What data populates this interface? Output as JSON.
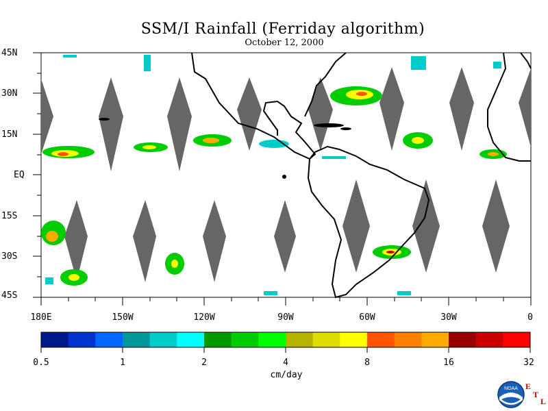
{
  "title": "SSM/I Rainfall (Ferriday algorithm)",
  "subtitle": "October 12, 2000",
  "lat_labels": [
    "45N",
    "30N",
    "15N",
    "EQ",
    "15S",
    "30S",
    "45S"
  ],
  "lon_labels": [
    "180E",
    "150W",
    "120W",
    "90W",
    "60W",
    "30W",
    "0"
  ],
  "colorbar": {
    "units": "cm/day",
    "tick_labels": [
      "0.5",
      "1",
      "2",
      "4",
      "8",
      "16",
      "32"
    ],
    "colors": [
      "#001a8c",
      "#0033cc",
      "#0066ff",
      "#009999",
      "#00cccc",
      "#00ffff",
      "#009900",
      "#00cc00",
      "#00ff00",
      "#b3b300",
      "#dddd00",
      "#ffff00",
      "#ff5500",
      "#ff7f00",
      "#ffaa00",
      "#990000",
      "#cc0000",
      "#ff0000"
    ]
  },
  "logo": {
    "text": "NOAA",
    "lab_letters": [
      "E",
      "T",
      "L"
    ]
  }
}
